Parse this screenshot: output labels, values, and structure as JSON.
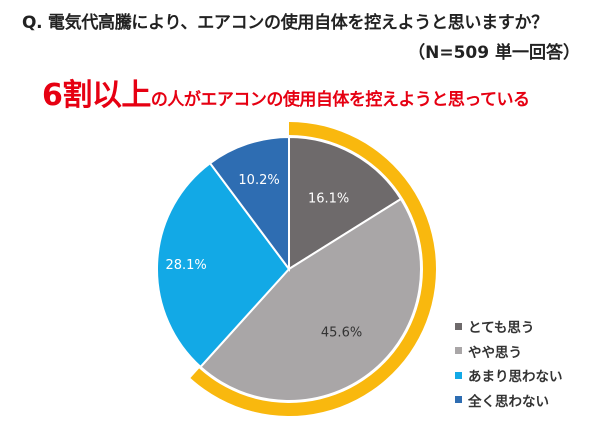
{
  "question": {
    "line1": "Q.  電気代高騰により、エアコンの使用自体を控えようと思いますか？",
    "line2": "（N=509   単一回答）"
  },
  "headline": {
    "emphasis": "6割以上",
    "rest": "の人がエアコンの使用自体を控えようと思っている",
    "color": "#e60012"
  },
  "legend": [
    {
      "label": "とても思う",
      "color": "#6e6a6b"
    },
    {
      "label": "やや思う",
      "color": "#a9a6a7"
    },
    {
      "label": "あまり思わない",
      "color": "#12a9e6"
    },
    {
      "label": "全く思わない",
      "color": "#2e6db2"
    }
  ],
  "highlight_ring_color": "#f9b80e",
  "chart_data": {
    "type": "pie",
    "title": "Q. 電気代高騰により、エアコンの使用自体を控えようと思いますか？（N=509 単一回答）",
    "subtitle": "6割以上の人がエアコンの使用自体を控えようと思っている",
    "categories": [
      "とても思う",
      "やや思う",
      "あまり思わない",
      "全く思わない"
    ],
    "values": [
      16.1,
      45.6,
      28.1,
      10.2
    ],
    "labels": [
      "16.1%",
      "45.6%",
      "28.1%",
      "10.2%"
    ],
    "colors": [
      "#6e6a6b",
      "#a9a6a7",
      "#12a9e6",
      "#2e6db2"
    ],
    "start_angle": "12 o'clock, clockwise",
    "highlight": {
      "categories": [
        "とても思う",
        "やや思う"
      ],
      "total": 61.7,
      "style": "orange outer arc"
    },
    "legend_position": "right-bottom",
    "n": 509
  }
}
